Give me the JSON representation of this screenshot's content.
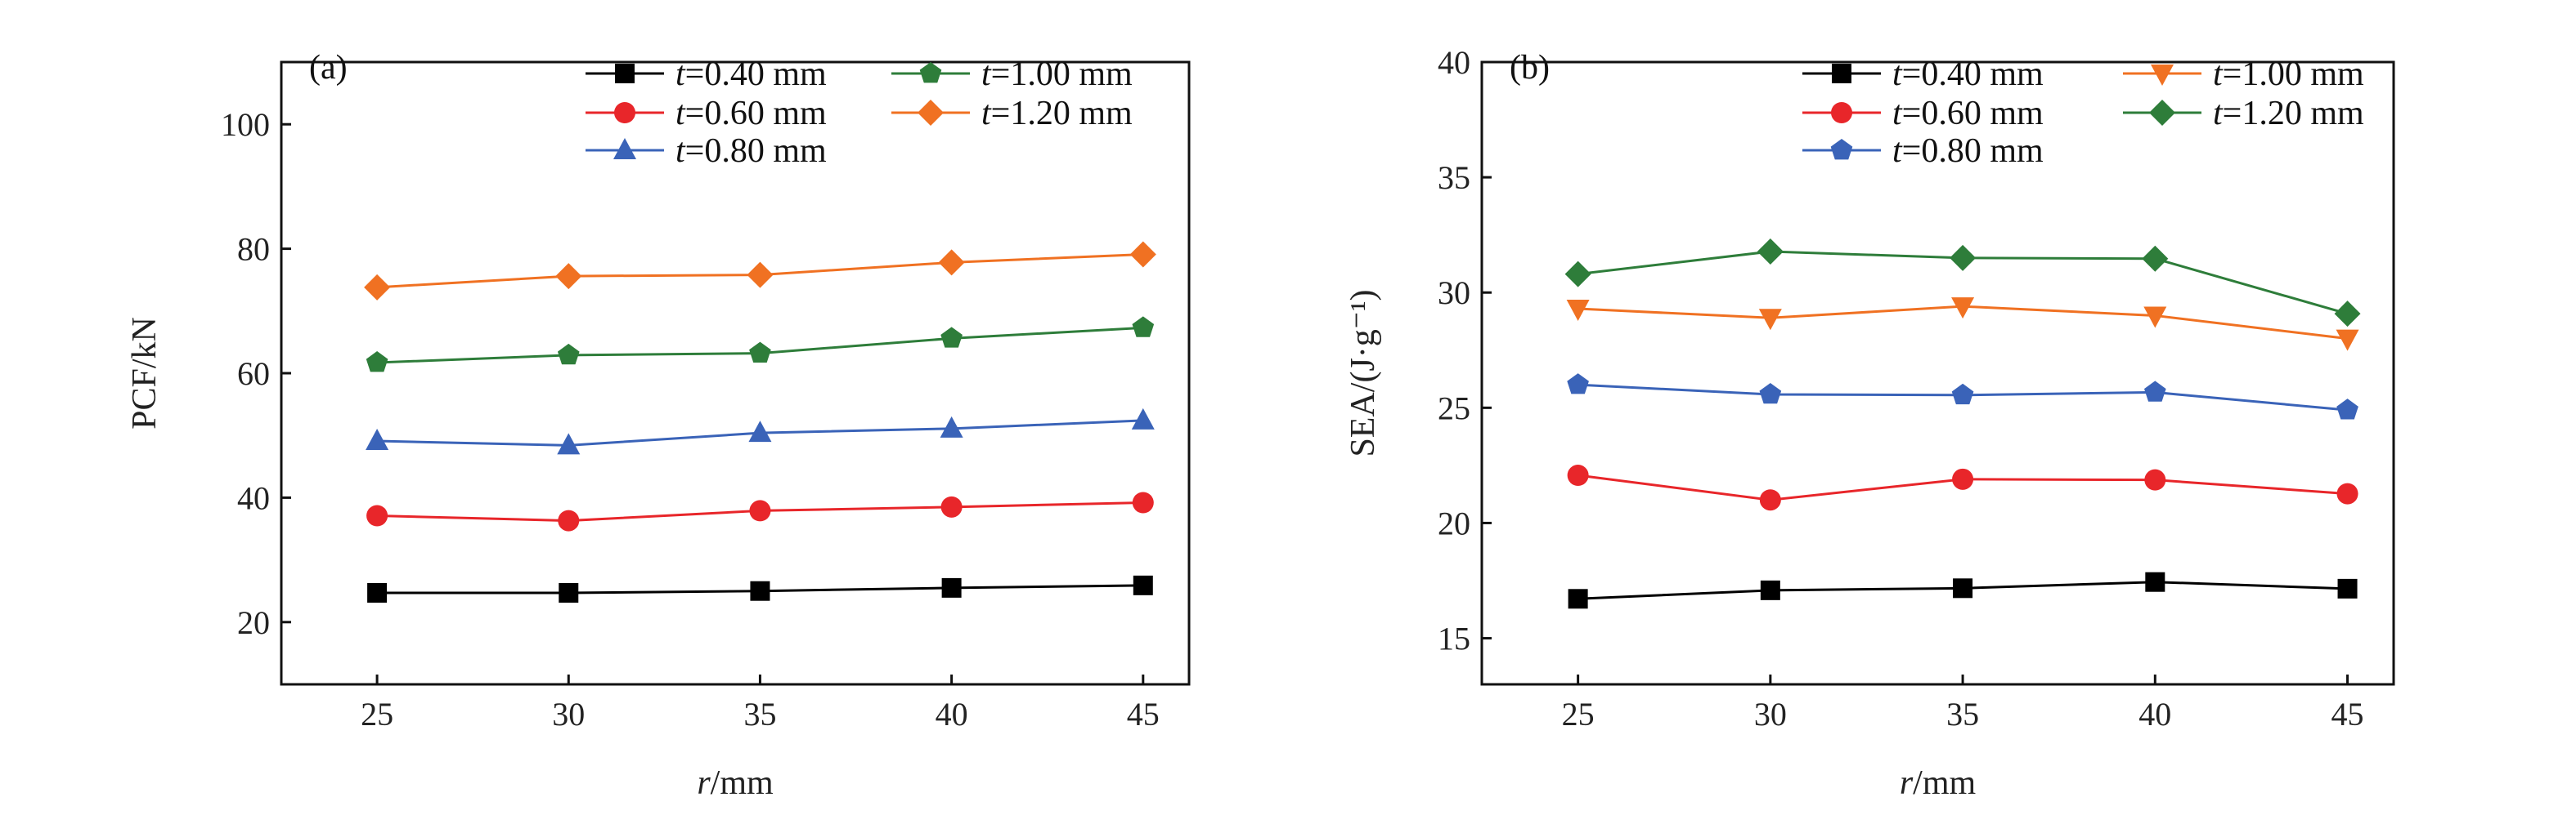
{
  "chart_data": [
    {
      "type": "line",
      "panel_label": "(a)",
      "xlabel_var": "r",
      "xlabel_unit": "/mm",
      "ylabel": "PCF/kN",
      "x": [
        25,
        30,
        35,
        40,
        45
      ],
      "xticks": [
        25,
        30,
        35,
        40,
        45
      ],
      "yticks": [
        20,
        40,
        60,
        80,
        100
      ],
      "xlim": [
        22.5,
        46.2
      ],
      "ylim": [
        10,
        110
      ],
      "legend_position": "top-right",
      "series": [
        {
          "name_var": "t",
          "name": "=0.40 mm",
          "marker": "square",
          "color": "#000000",
          "values": [
            24.7,
            24.7,
            25.0,
            25.5,
            25.9
          ]
        },
        {
          "name_var": "t",
          "name": "=0.60 mm",
          "marker": "circle",
          "color": "#e8262a",
          "values": [
            37.1,
            36.3,
            37.9,
            38.5,
            39.2
          ]
        },
        {
          "name_var": "t",
          "name": "=0.80 mm",
          "marker": "triangle-up",
          "color": "#3a63b8",
          "values": [
            49.1,
            48.4,
            50.4,
            51.1,
            52.4
          ]
        },
        {
          "name_var": "t",
          "name": "=1.00 mm",
          "marker": "pentagon",
          "color": "#2e7d3a",
          "values": [
            61.7,
            62.9,
            63.2,
            65.6,
            67.3
          ]
        },
        {
          "name_var": "t",
          "name": "=1.20 mm",
          "marker": "diamond",
          "color": "#f07122",
          "values": [
            73.8,
            75.6,
            75.8,
            77.8,
            79.1
          ]
        }
      ]
    },
    {
      "type": "line",
      "panel_label": "(b)",
      "xlabel_var": "r",
      "xlabel_unit": "/mm",
      "ylabel": "SEA/(J·g⁻¹)",
      "x": [
        25,
        30,
        35,
        40,
        45
      ],
      "xticks": [
        25,
        30,
        35,
        40,
        45
      ],
      "yticks": [
        15,
        20,
        25,
        30,
        35,
        40
      ],
      "xlim": [
        22.5,
        46.2
      ],
      "ylim": [
        13,
        40
      ],
      "legend_position": "top-right",
      "series": [
        {
          "name_var": "t",
          "name": "=0.40 mm",
          "marker": "square",
          "color": "#000000",
          "values": [
            16.71,
            17.08,
            17.17,
            17.44,
            17.15
          ]
        },
        {
          "name_var": "t",
          "name": "=0.60 mm",
          "marker": "circle",
          "color": "#e8262a",
          "values": [
            22.07,
            21.0,
            21.9,
            21.87,
            21.27
          ]
        },
        {
          "name_var": "t",
          "name": "=0.80 mm",
          "marker": "pentagon",
          "color": "#3a63b8",
          "values": [
            26.0,
            25.58,
            25.55,
            25.67,
            24.9
          ]
        },
        {
          "name_var": "t",
          "name": "=1.00 mm",
          "marker": "triangle-down",
          "color": "#f07122",
          "values": [
            29.3,
            28.9,
            29.4,
            29.0,
            28.0
          ]
        },
        {
          "name_var": "t",
          "name": "=1.20 mm",
          "marker": "diamond",
          "color": "#2e7d3a",
          "values": [
            30.8,
            31.78,
            31.5,
            31.47,
            29.08
          ]
        }
      ]
    }
  ]
}
